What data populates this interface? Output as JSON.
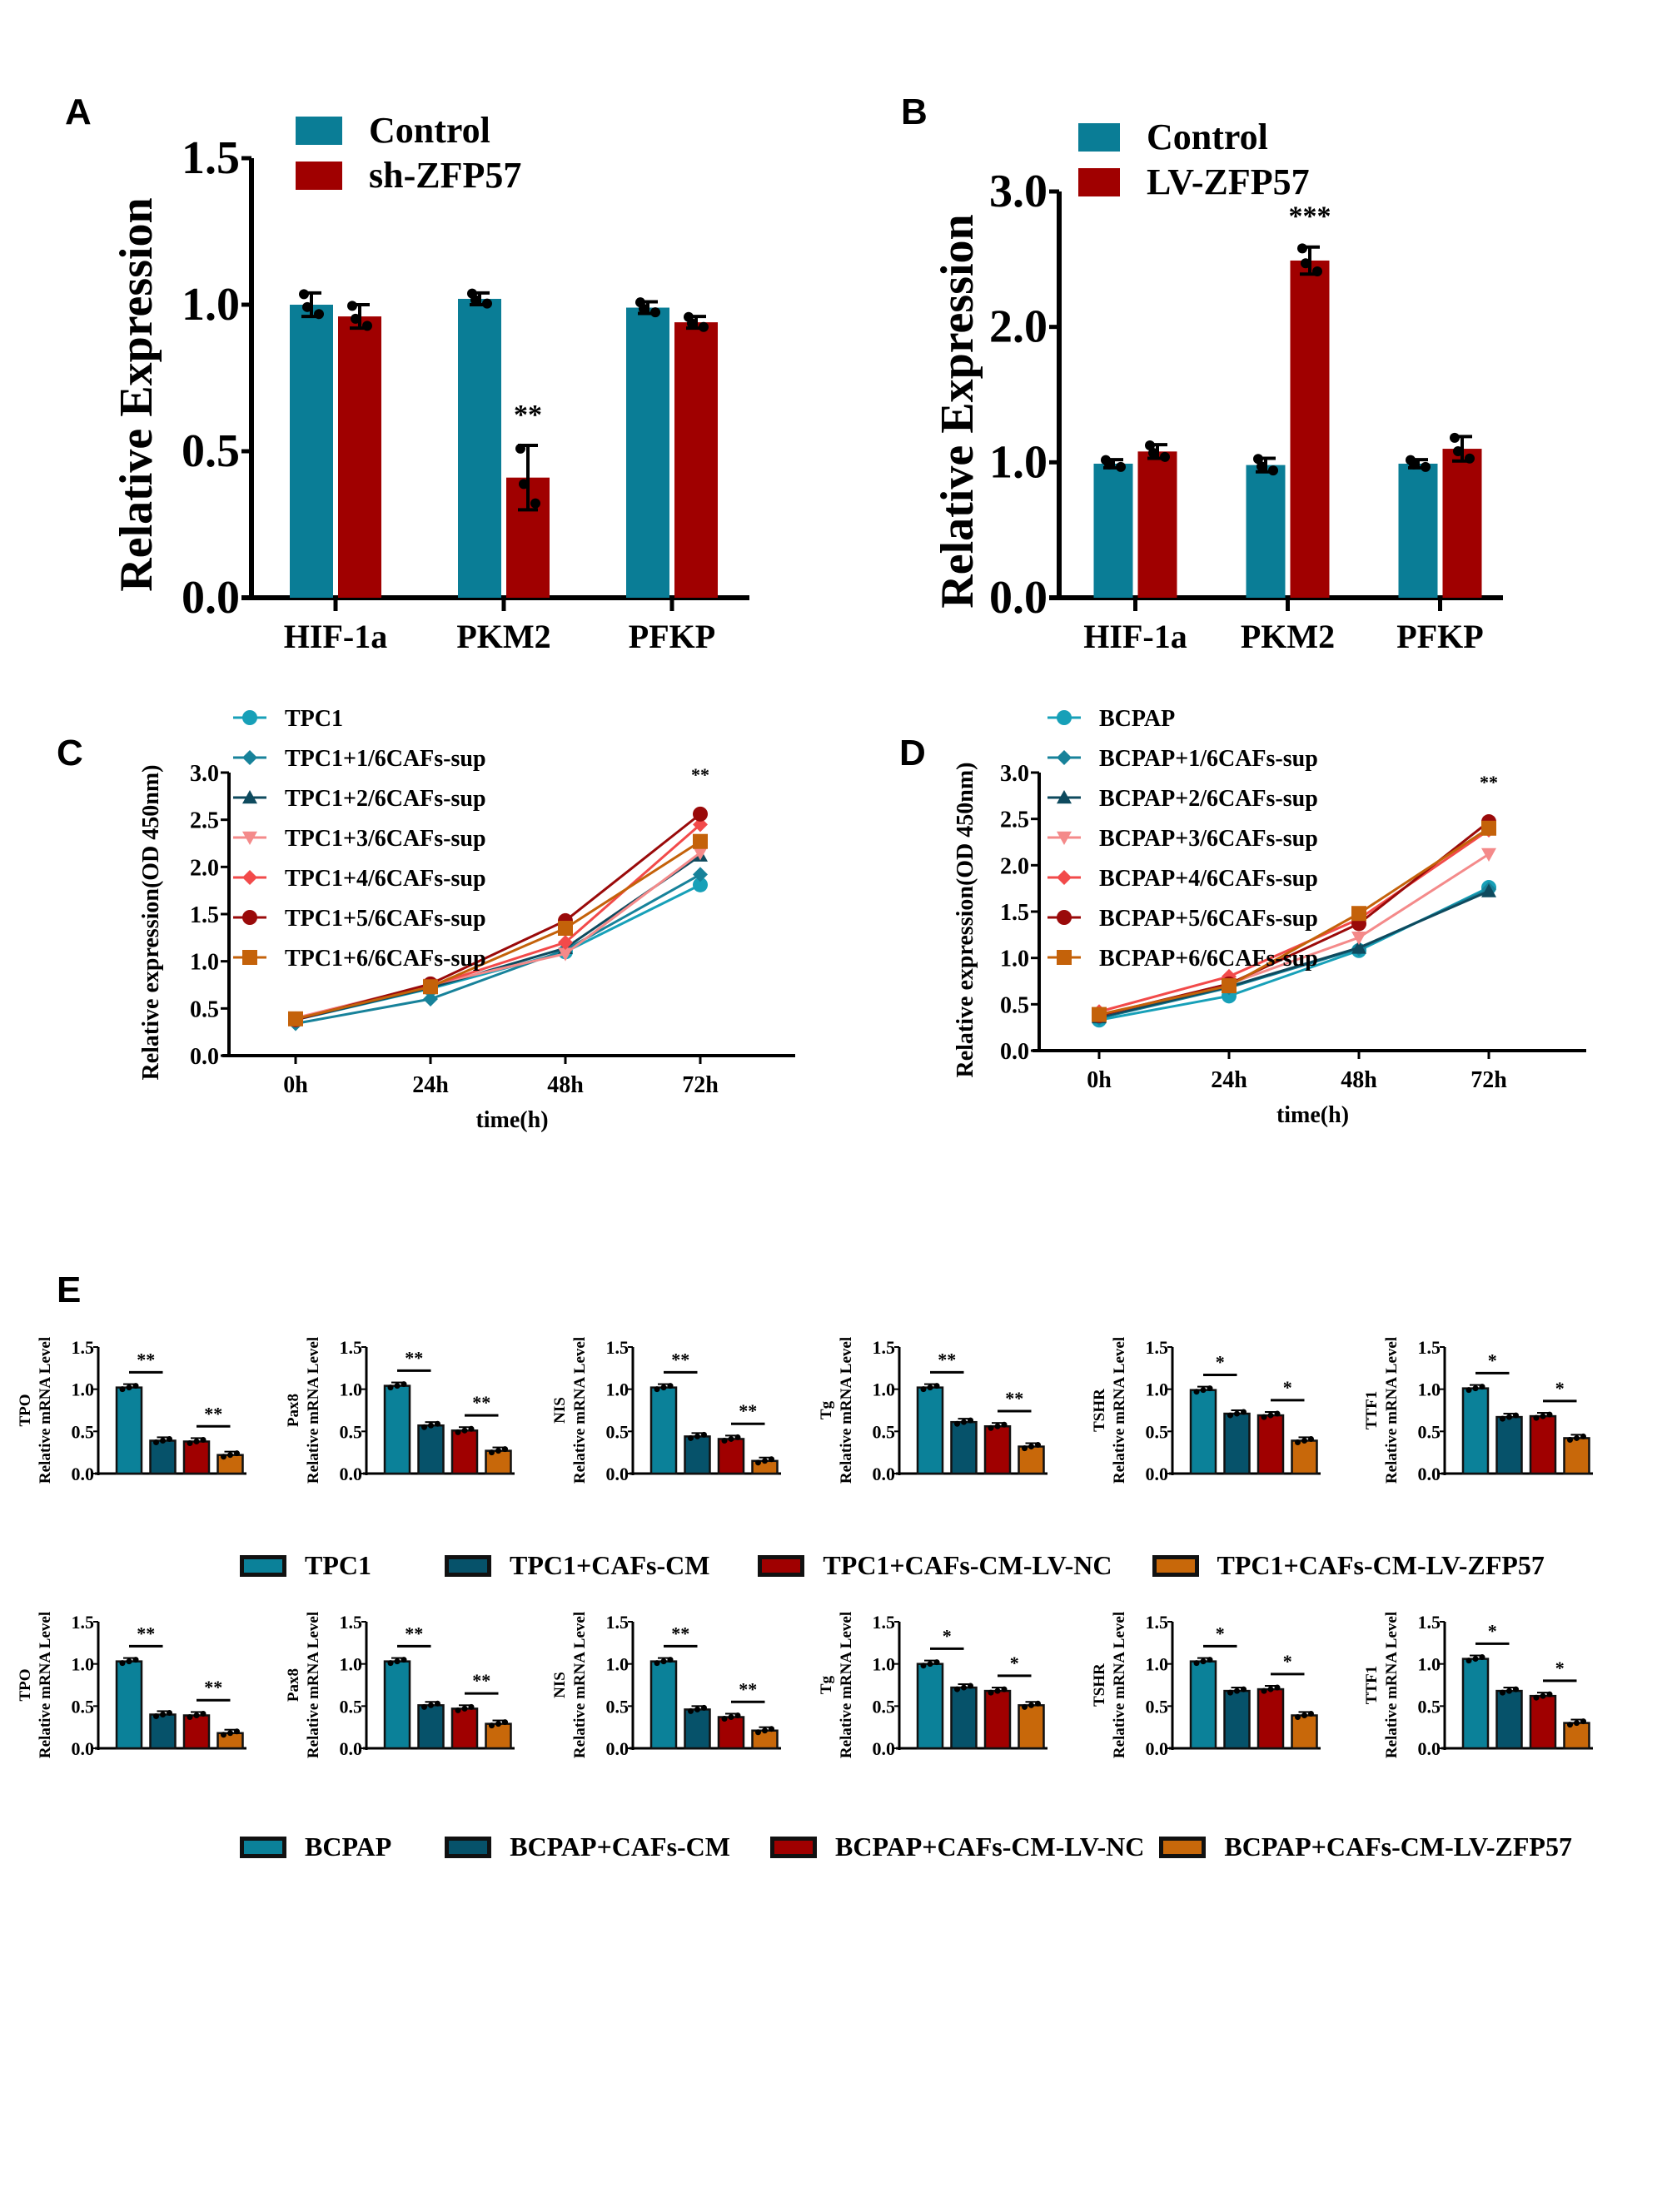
{
  "panels": {
    "A": "A",
    "B": "B",
    "C": "C",
    "D": "D",
    "E": "E"
  },
  "colors": {
    "control": "#0a7d96",
    "treated": "#a00000",
    "c_tpc1": "#17a0b8",
    "c_1": "#17829a",
    "c_2": "#0e4a5e",
    "c_3": "#f48a8a",
    "c_4": "#f24a4a",
    "c_5": "#9a0a0a",
    "c_6": "#c4620a",
    "e_base": "#0b8199",
    "e_cm": "#06526a",
    "e_nc": "#a00000",
    "e_zfp": "#c8680a"
  },
  "chart_data": [
    {
      "id": "A",
      "type": "bar",
      "title": "",
      "categories": [
        "HIF-1a",
        "PKM2",
        "PFKP"
      ],
      "series": [
        {
          "name": "Control",
          "values": [
            1.0,
            1.02,
            0.99
          ],
          "errors": [
            0.04,
            0.02,
            0.02
          ]
        },
        {
          "name": "sh-ZFP57",
          "values": [
            0.96,
            0.41,
            0.94
          ],
          "errors": [
            0.04,
            0.11,
            0.02
          ]
        }
      ],
      "annotations": [
        {
          "category": "PKM2",
          "series": "sh-ZFP57",
          "text": "**"
        }
      ],
      "xlabel": "",
      "ylabel": "Relative Expression",
      "ylim": [
        0,
        1.5
      ],
      "yticks": [
        "0.0",
        "0.5",
        "1.0",
        "1.5"
      ],
      "legend": "top",
      "grid": false
    },
    {
      "id": "B",
      "type": "bar",
      "title": "",
      "categories": [
        "HIF-1a",
        "PKM2",
        "PFKP"
      ],
      "series": [
        {
          "name": "Control",
          "values": [
            0.99,
            0.98,
            0.99
          ],
          "errors": [
            0.03,
            0.05,
            0.03
          ]
        },
        {
          "name": "LV-ZFP57",
          "values": [
            1.08,
            2.49,
            1.1
          ],
          "errors": [
            0.05,
            0.1,
            0.09
          ]
        }
      ],
      "annotations": [
        {
          "category": "PKM2",
          "series": "LV-ZFP57",
          "text": "***"
        }
      ],
      "xlabel": "",
      "ylabel": "Relative Expression",
      "ylim": [
        0,
        3.0
      ],
      "yticks": [
        "0.0",
        "1.0",
        "2.0",
        "3.0"
      ],
      "legend": "top",
      "grid": false
    },
    {
      "id": "C",
      "type": "line",
      "title": "",
      "x": [
        "0h",
        "24h",
        "48h",
        "72h"
      ],
      "series": [
        {
          "name": "TPC1",
          "marker": "circle",
          "values": [
            0.38,
            0.71,
            1.1,
            1.81
          ]
        },
        {
          "name": "TPC1+1/6CAFs-sup",
          "marker": "diamond",
          "values": [
            0.34,
            0.6,
            1.12,
            1.92
          ]
        },
        {
          "name": "TPC1+2/6CAFs-sup",
          "marker": "triangle-up",
          "values": [
            0.38,
            0.72,
            1.14,
            2.12
          ]
        },
        {
          "name": "TPC1+3/6CAFs-sup",
          "marker": "triangle-down",
          "values": [
            0.4,
            0.75,
            1.08,
            2.15
          ]
        },
        {
          "name": "TPC1+4/6CAFs-sup",
          "marker": "diamond",
          "values": [
            0.39,
            0.74,
            1.2,
            2.45
          ]
        },
        {
          "name": "TPC1+5/6CAFs-sup",
          "marker": "hexagon",
          "values": [
            0.38,
            0.76,
            1.43,
            2.56
          ]
        },
        {
          "name": "TPC1+6/6CAFs-sup",
          "marker": "square",
          "values": [
            0.39,
            0.73,
            1.35,
            2.27
          ]
        }
      ],
      "annotations": [
        {
          "x": "72h",
          "text": "**"
        }
      ],
      "xlabel": "time(h)",
      "ylabel": "Relative expression(OD 450nm)",
      "ylim": [
        0,
        3.0
      ],
      "yticks": [
        "0.0",
        "0.5",
        "1.0",
        "1.5",
        "2.0",
        "2.5",
        "3.0"
      ],
      "legend": "top",
      "grid": false
    },
    {
      "id": "D",
      "type": "line",
      "title": "",
      "x": [
        "0h",
        "24h",
        "48h",
        "72h"
      ],
      "series": [
        {
          "name": "BCPAP",
          "marker": "circle",
          "values": [
            0.33,
            0.59,
            1.08,
            1.76
          ]
        },
        {
          "name": "BCPAP+1/6CAFs-sup",
          "marker": "diamond",
          "values": [
            0.35,
            0.68,
            1.1,
            1.74
          ]
        },
        {
          "name": "BCPAP+2/6CAFs-sup",
          "marker": "triangle-up",
          "values": [
            0.36,
            0.69,
            1.11,
            1.72
          ]
        },
        {
          "name": "BCPAP+3/6CAFs-sup",
          "marker": "triangle-down",
          "values": [
            0.38,
            0.72,
            1.22,
            2.12
          ]
        },
        {
          "name": "BCPAP+4/6CAFs-sup",
          "marker": "diamond",
          "values": [
            0.42,
            0.8,
            1.42,
            2.38
          ]
        },
        {
          "name": "BCPAP+5/6CAFs-sup",
          "marker": "hexagon",
          "values": [
            0.38,
            0.72,
            1.37,
            2.47
          ]
        },
        {
          "name": "BCPAP+6/6CAFs-sup",
          "marker": "square",
          "values": [
            0.39,
            0.7,
            1.48,
            2.4
          ]
        }
      ],
      "annotations": [
        {
          "x": "72h",
          "text": "**"
        }
      ],
      "xlabel": "time(h)",
      "ylabel": "Relative expression(OD 450nm)",
      "ylim": [
        0,
        3.0
      ],
      "yticks": [
        "0.0",
        "0.5",
        "1.0",
        "1.5",
        "2.0",
        "2.5",
        "3.0"
      ],
      "legend": "top",
      "grid": false
    },
    {
      "id": "E-TPC1",
      "type": "bar",
      "groups": [
        "TPC1",
        "TPC1+CAFs-CM",
        "TPC1+CAFs-CM-LV-NC",
        "TPC1+CAFs-CM-LV-ZFP57"
      ],
      "ylabel": "Relative mRNA Level",
      "ylim": [
        0,
        1.5
      ],
      "yticks": [
        "0.0",
        "0.5",
        "1.0",
        "1.5"
      ],
      "legend": "bottom",
      "subplots": [
        {
          "gene": "TPO",
          "values": [
            1.02,
            0.39,
            0.38,
            0.22
          ],
          "sig": [
            "**",
            "**"
          ]
        },
        {
          "gene": "Pax8",
          "values": [
            1.04,
            0.57,
            0.51,
            0.27
          ],
          "sig": [
            "**",
            "**"
          ]
        },
        {
          "gene": "NIS",
          "values": [
            1.02,
            0.44,
            0.41,
            0.15
          ],
          "sig": [
            "**",
            "**"
          ]
        },
        {
          "gene": "Tg",
          "values": [
            1.02,
            0.61,
            0.56,
            0.32
          ],
          "sig": [
            "**",
            "**"
          ]
        },
        {
          "gene": "TSHR",
          "values": [
            0.99,
            0.71,
            0.69,
            0.39
          ],
          "sig": [
            "*",
            "*"
          ]
        },
        {
          "gene": "TTF1",
          "values": [
            1.01,
            0.67,
            0.68,
            0.42
          ],
          "sig": [
            "*",
            "*"
          ]
        }
      ]
    },
    {
      "id": "E-BCPAP",
      "type": "bar",
      "groups": [
        "BCPAP",
        "BCPAP+CAFs-CM",
        "BCPAP+CAFs-CM-LV-NC",
        "BCPAP+CAFs-CM-LV-ZFP57"
      ],
      "ylabel": "Relative mRNA Level",
      "ylim": [
        0,
        1.5
      ],
      "yticks": [
        "0.0",
        "0.5",
        "1.0",
        "1.5"
      ],
      "legend": "bottom",
      "subplots": [
        {
          "gene": "TPO",
          "values": [
            1.03,
            0.4,
            0.39,
            0.18
          ],
          "sig": [
            "**",
            "**"
          ]
        },
        {
          "gene": "Pax8",
          "values": [
            1.03,
            0.51,
            0.47,
            0.29
          ],
          "sig": [
            "**",
            "**"
          ]
        },
        {
          "gene": "NIS",
          "values": [
            1.03,
            0.46,
            0.37,
            0.21
          ],
          "sig": [
            "**",
            "**"
          ]
        },
        {
          "gene": "Tg",
          "values": [
            1.0,
            0.72,
            0.68,
            0.51
          ],
          "sig": [
            "*",
            "*"
          ]
        },
        {
          "gene": "TSHR",
          "values": [
            1.03,
            0.68,
            0.7,
            0.39
          ],
          "sig": [
            "*",
            "*"
          ]
        },
        {
          "gene": "TTF1",
          "values": [
            1.06,
            0.68,
            0.62,
            0.3
          ],
          "sig": [
            "*",
            "*"
          ]
        }
      ]
    }
  ]
}
